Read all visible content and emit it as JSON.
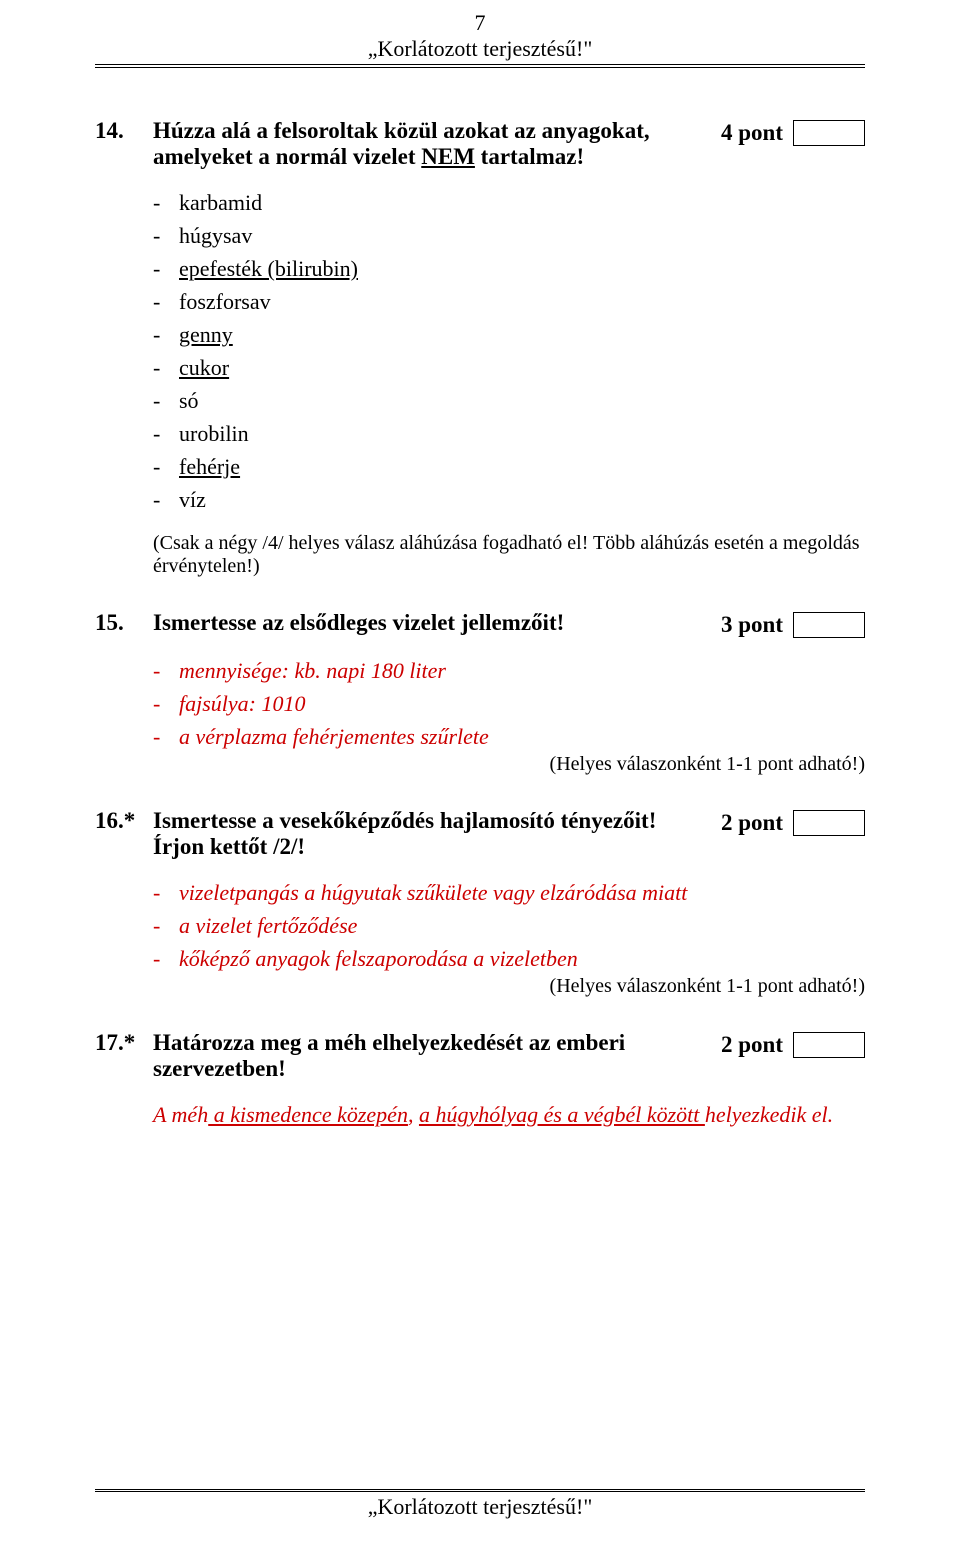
{
  "page_number": "7",
  "header_text": "„Korlátozott terjesztésű!\"",
  "footer_text": "„Korlátozott terjesztésű!\"",
  "q14": {
    "num": "14.",
    "text_line1": "Húzza alá a felsoroltak közül azokat az anyagokat,",
    "text_line2_a": "amelyeket a normál vizelet ",
    "text_line2_nem": "NEM",
    "text_line2_b": " tartalmaz!",
    "points": "4 pont",
    "items": [
      {
        "t": "karbamid",
        "u": false
      },
      {
        "t": "húgysav",
        "u": false
      },
      {
        "t": "epefesték (bilirubin)",
        "u": true
      },
      {
        "t": "foszforsav",
        "u": false
      },
      {
        "t": "genny",
        "u": true
      },
      {
        "t": "cukor",
        "u": true
      },
      {
        "t": "só",
        "u": false
      },
      {
        "t": "urobilin",
        "u": false
      },
      {
        "t": "fehérje",
        "u": true
      },
      {
        "t": "víz",
        "u": false
      }
    ],
    "note": "(Csak a négy /4/ helyes válasz aláhúzása fogadható el! Több aláhúzás esetén a megoldás érvénytelen!)"
  },
  "q15": {
    "num": "15.",
    "text": "Ismertesse az elsődleges vizelet jellemzőit!",
    "points": "3 pont",
    "answers": [
      "mennyisége: kb. napi 180 liter",
      "fajsúlya: 1010",
      "a vérplazma fehérjementes szűrlete"
    ],
    "note": "(Helyes válaszonként 1-1 pont adható!)"
  },
  "q16": {
    "num": "16.*",
    "text_line1": "Ismertesse a vesekőképződés hajlamosító tényezőit!",
    "text_line2": "Írjon kettőt /2/!",
    "points": "2 pont",
    "answers": [
      "vizeletpangás a húgyutak szűkülete vagy elzáródása miatt",
      "a vizelet fertőződése",
      "kőképző anyagok felszaporodása a vizeletben"
    ],
    "note": "(Helyes válaszonként 1-1 pont adható!)"
  },
  "q17": {
    "num": "17.*",
    "text_line1": "Határozza meg a méh elhelyezkedését az emberi",
    "text_line2": "szervezetben!",
    "points": "2 pont",
    "answer_prefix": "A méh",
    "answer_u1": " a kismedence közepén",
    "answer_mid": ", ",
    "answer_u2": "a húgyhólyag és a végbél között ",
    "answer_suffix": "helyezkedik el."
  }
}
